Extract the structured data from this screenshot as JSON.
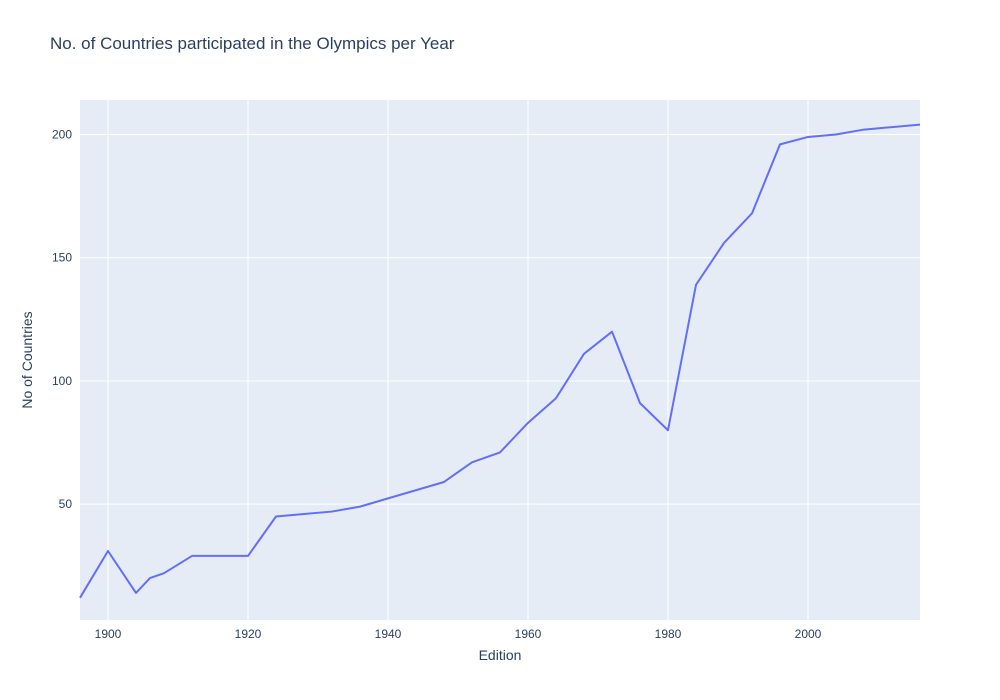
{
  "chart_data": {
    "type": "line",
    "title": "No. of Countries participated in the Olympics per Year",
    "xlabel": "Edition",
    "ylabel": "No of Countries",
    "xlim": [
      1896,
      2016
    ],
    "ylim": [
      3,
      214
    ],
    "x_ticks": [
      1900,
      1920,
      1940,
      1960,
      1980,
      2000
    ],
    "y_ticks": [
      50,
      100,
      150,
      200
    ],
    "grid": true,
    "legend": "none",
    "line_color": "#636efa",
    "plot_bg": "#e5ecf6",
    "series": [
      {
        "x": [
          1896,
          1900,
          1904,
          1906,
          1908,
          1912,
          1920,
          1924,
          1928,
          1932,
          1936,
          1948,
          1952,
          1956,
          1960,
          1964,
          1968,
          1972,
          1976,
          1980,
          1984,
          1988,
          1992,
          1996,
          2000,
          2004,
          2008,
          2012,
          2016
        ],
        "values": [
          12,
          31,
          14,
          20,
          22,
          29,
          29,
          45,
          46,
          47,
          49,
          59,
          67,
          71,
          83,
          93,
          111,
          120,
          91,
          80,
          139,
          156,
          168,
          196,
          199,
          200,
          202,
          203,
          204
        ]
      }
    ]
  }
}
